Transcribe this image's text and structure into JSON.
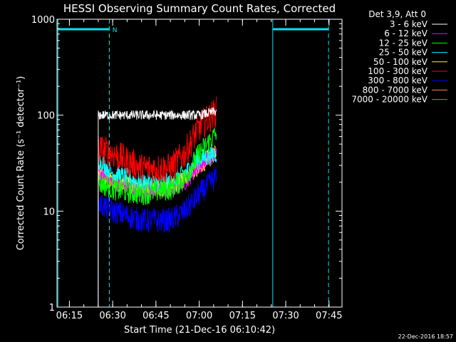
{
  "chart_data": {
    "type": "line",
    "title": "HESSI Observing Summary Count Rates, Corrected",
    "xlabel": "Start Time (21-Dec-16 06:10:42)",
    "ylabel": "Corrected Count Rate (s⁻¹ detector⁻¹)",
    "y_scale": "log",
    "ylim": [
      1,
      1000
    ],
    "xlim": [
      "06:10:42",
      "07:49:30"
    ],
    "x_ticks": [
      "06:15",
      "06:30",
      "06:45",
      "07:00",
      "07:15",
      "07:30",
      "07:45"
    ],
    "y_ticks": [
      "1",
      "10",
      "100",
      "1000"
    ],
    "legend_title": "Det 3,9, Att 0",
    "legend_position": "top-right",
    "footer": "22-Dec-2016 18:57",
    "annotations": [
      {
        "text": "N",
        "x": "06:29:30"
      }
    ],
    "markers": {
      "dashed_lines": [
        "06:28:50",
        "07:44:50"
      ],
      "solid_lines": [
        "06:11:00",
        "07:25:30"
      ],
      "top_bars": [
        {
          "from": "06:11:00",
          "to": "06:28:50"
        },
        {
          "from": "07:25:30",
          "to": "07:44:50"
        }
      ]
    },
    "series": [
      {
        "name": "3 - 6 keV",
        "color": "#ffffff",
        "x": [
          "06:25:00",
          "06:30:00",
          "06:40:00",
          "06:50:00",
          "07:00:00",
          "07:06:00"
        ],
        "values": [
          100,
          100,
          100,
          100,
          100,
          110
        ]
      },
      {
        "name": "6 - 12 keV",
        "color": "#ff00ff",
        "x": [
          "06:25:00",
          "06:30:00",
          "06:40:00",
          "06:50:00",
          "06:55:00",
          "07:00:00",
          "07:06:00"
        ],
        "values": [
          25,
          20,
          16,
          17,
          20,
          30,
          40
        ]
      },
      {
        "name": "12 - 25 keV",
        "color": "#00ff00",
        "x": [
          "06:25:00",
          "06:30:00",
          "06:40:00",
          "06:50:00",
          "06:55:00",
          "07:00:00",
          "07:06:00"
        ],
        "values": [
          20,
          17,
          15,
          17,
          22,
          40,
          65
        ]
      },
      {
        "name": "25 - 50 keV",
        "color": "#00ffff",
        "x": [
          "06:25:00",
          "06:30:00",
          "06:40:00",
          "06:50:00",
          "06:55:00",
          "07:00:00",
          "07:06:00"
        ],
        "values": [
          35,
          25,
          20,
          20,
          25,
          35,
          40
        ]
      },
      {
        "name": "50 - 100 keV",
        "color": "#ffff00",
        "x": [
          "06:25:00",
          "06:30:00",
          "06:40:00",
          "06:50:00",
          "06:55:00",
          "07:00:00",
          "07:06:00"
        ],
        "values": [
          25,
          20,
          18,
          18,
          22,
          30,
          40
        ]
      },
      {
        "name": "100 - 300 keV",
        "color": "#ff0000",
        "x": [
          "06:25:00",
          "06:30:00",
          "06:40:00",
          "06:50:00",
          "06:55:00",
          "07:00:00",
          "07:06:00"
        ],
        "values": [
          45,
          40,
          28,
          28,
          40,
          75,
          110
        ]
      },
      {
        "name": "300 - 800 keV",
        "color": "#0000ff",
        "x": [
          "06:25:00",
          "06:30:00",
          "06:40:00",
          "06:50:00",
          "06:55:00",
          "07:00:00",
          "07:06:00"
        ],
        "values": [
          12,
          10,
          8,
          8,
          10,
          15,
          23
        ]
      },
      {
        "name": "800 - 7000 keV",
        "color": "#ff8c3c",
        "x": [
          "06:25:00",
          "06:30:00",
          "06:40:00",
          "06:50:00",
          "06:55:00",
          "07:00:00",
          "07:06:00"
        ],
        "values": [
          25,
          20,
          18,
          18,
          22,
          30,
          40
        ]
      },
      {
        "name": "7000 - 20000 keV",
        "color": "#c88200",
        "x": [
          "06:25:00",
          "06:30:00",
          "06:40:00",
          "06:50:00",
          "06:55:00",
          "07:00:00",
          "07:06:00"
        ],
        "values": [
          25,
          20,
          18,
          18,
          22,
          30,
          40
        ]
      }
    ]
  }
}
